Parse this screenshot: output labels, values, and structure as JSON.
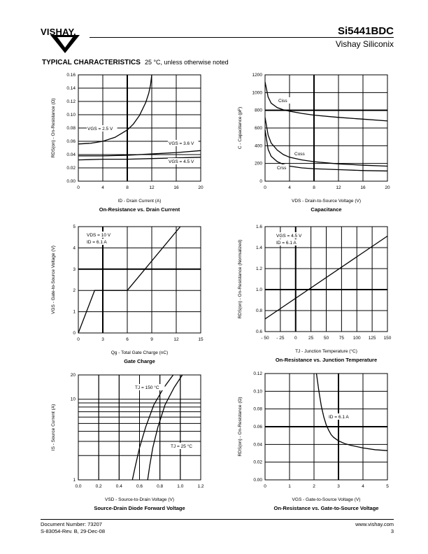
{
  "header": {
    "logo_text": "VISHAY.",
    "part_number": "Si5441BDC",
    "brand": "Vishay Siliconix"
  },
  "section": {
    "title": "TYPICAL CHARACTERISTICS",
    "subtitle": "25 °C, unless otherwise noted"
  },
  "footer": {
    "doc_number": "Document Number: 73207",
    "revision": "S-83054-Rev. B, 29-Dec-08",
    "website": "www.vishay.com",
    "page": "3"
  },
  "chart_data": [
    {
      "id": "c1",
      "type": "line",
      "title": "On-Resistance vs. Drain Current",
      "xlabel": "ID - Drain Current (A)",
      "ylabel": "RDS(on) - On-Resistance (Ω)",
      "xlim": [
        0,
        20
      ],
      "ylim": [
        0,
        0.16
      ],
      "x_ticks": [
        "0",
        "4",
        "8",
        "12",
        "16",
        "20"
      ],
      "y_ticks": [
        "0.00",
        "0.02",
        "0.04",
        "0.06",
        "0.08",
        "0.10",
        "0.12",
        "0.14",
        "0.16"
      ],
      "series": [
        {
          "name": "VGS = 2.5 V",
          "x": [
            0,
            2,
            4,
            6,
            8,
            9,
            10,
            11,
            11.5,
            11.8,
            12
          ],
          "y": [
            0.056,
            0.057,
            0.06,
            0.066,
            0.077,
            0.086,
            0.099,
            0.118,
            0.132,
            0.145,
            0.16
          ]
        },
        {
          "name": "VGS = 3.6 V",
          "x": [
            0,
            4,
            8,
            12,
            16,
            20
          ],
          "y": [
            0.038,
            0.038,
            0.039,
            0.041,
            0.043,
            0.046
          ]
        },
        {
          "name": "VGS = 4.5 V",
          "x": [
            0,
            4,
            8,
            12,
            16,
            20
          ],
          "y": [
            0.032,
            0.033,
            0.033,
            0.034,
            0.035,
            0.036
          ]
        }
      ],
      "annotations": [
        "VGS = 2.5 V",
        "VGS = 3.6 V",
        "VGS = 4.5 V"
      ]
    },
    {
      "id": "c2",
      "type": "line",
      "title": "Capacitance",
      "xlabel": "VDS - Drain-to-Source Voltage (V)",
      "ylabel": "C - Capacitance (pF)",
      "xlim": [
        0,
        20
      ],
      "ylim": [
        0,
        1200
      ],
      "x_ticks": [
        "0",
        "4",
        "8",
        "12",
        "16",
        "20"
      ],
      "y_ticks": [
        "0",
        "200",
        "400",
        "600",
        "800",
        "1000",
        "1200"
      ],
      "series": [
        {
          "name": "Ciss",
          "x": [
            0,
            0.5,
            1,
            2,
            3,
            4,
            6,
            8,
            12,
            16,
            20
          ],
          "y": [
            1120,
            950,
            880,
            830,
            805,
            790,
            765,
            745,
            720,
            700,
            680
          ]
        },
        {
          "name": "Coss",
          "x": [
            0,
            0.5,
            1,
            2,
            3,
            4,
            6,
            8,
            12,
            16,
            20
          ],
          "y": [
            720,
            520,
            430,
            350,
            300,
            270,
            240,
            220,
            195,
            180,
            170
          ]
        },
        {
          "name": "Crss",
          "x": [
            0,
            0.5,
            1,
            2,
            3,
            4,
            6,
            8,
            12,
            16,
            20
          ],
          "y": [
            580,
            360,
            280,
            220,
            190,
            170,
            150,
            140,
            130,
            120,
            115
          ]
        }
      ],
      "annotations": [
        "Ciss",
        "Coss",
        "Crss"
      ]
    },
    {
      "id": "c3",
      "type": "line",
      "title": "Gate Charge",
      "xlabel": "Qg - Total Gate Charge (nC)",
      "ylabel": "VGS - Gate-to-Source Voltage (V)",
      "xlim": [
        0,
        15
      ],
      "ylim": [
        0,
        5
      ],
      "x_ticks": [
        "0",
        "3",
        "6",
        "9",
        "12",
        "15"
      ],
      "y_ticks": [
        "0",
        "1",
        "2",
        "3",
        "4",
        "5"
      ],
      "series": [
        {
          "name": "",
          "x": [
            0,
            2,
            6,
            12.5
          ],
          "y": [
            0,
            2,
            2,
            5
          ]
        }
      ],
      "annotations": [
        "VDS = 10 V",
        "ID = 6.1 A"
      ]
    },
    {
      "id": "c4",
      "type": "line",
      "title": "On-Resistance vs. Junction Temperature",
      "xlabel": "TJ - Junction Temperature (°C)",
      "ylabel": "RDS(on) - On-Resistance (Normalized)",
      "xlim": [
        -50,
        150
      ],
      "ylim": [
        0.6,
        1.6
      ],
      "x_ticks": [
        "- 50",
        "- 25",
        "0",
        "25",
        "50",
        "75",
        "100",
        "125",
        "150"
      ],
      "y_ticks": [
        "0.6",
        "0.8",
        "1.0",
        "1.2",
        "1.4",
        "1.6"
      ],
      "series": [
        {
          "name": "",
          "x": [
            -50,
            150
          ],
          "y": [
            0.72,
            1.51
          ]
        }
      ],
      "annotations": [
        "VGS = 4.5 V",
        "ID = 6.1 A"
      ]
    },
    {
      "id": "c5",
      "type": "line",
      "title": "Source-Drain Diode Forward Voltage",
      "xlabel": "VSD - Source-to-Drain Voltage (V)",
      "ylabel": "IS - Source Current (A)",
      "xlim": [
        0,
        1.2
      ],
      "ylim": [
        1,
        20
      ],
      "log_y": true,
      "x_ticks": [
        "0.0",
        "0.2",
        "0.4",
        "0.6",
        "0.8",
        "1.0",
        "1.2"
      ],
      "y_ticks": [
        "1",
        "10",
        "20"
      ],
      "series": [
        {
          "name": "TJ = 150 °C",
          "x": [
            0.53,
            0.56,
            0.6,
            0.66,
            0.74,
            0.84,
            0.93
          ],
          "y": [
            1,
            1.5,
            2.5,
            4.5,
            8.5,
            14,
            20
          ]
        },
        {
          "name": "TJ = 25 °C",
          "x": [
            0.68,
            0.7,
            0.73,
            0.78,
            0.85,
            0.94,
            1.02
          ],
          "y": [
            1,
            1.5,
            2.5,
            4.5,
            8.5,
            14,
            20
          ]
        }
      ],
      "annotations": [
        "TJ = 150 °C",
        "TJ = 25 °C"
      ]
    },
    {
      "id": "c6",
      "type": "line",
      "title": "On-Resistance vs. Gate-to-Source Voltage",
      "xlabel": "VGS - Gate-to-Source Voltage (V)",
      "ylabel": "RDS(on) - On-Resistance (Ω)",
      "xlim": [
        0,
        5
      ],
      "ylim": [
        0,
        0.12
      ],
      "x_ticks": [
        "0",
        "1",
        "2",
        "3",
        "4",
        "5"
      ],
      "y_ticks": [
        "0.00",
        "0.02",
        "0.04",
        "0.06",
        "0.08",
        "0.10",
        "0.12"
      ],
      "series": [
        {
          "name": "",
          "x": [
            2.1,
            2.2,
            2.3,
            2.4,
            2.5,
            2.6,
            2.7,
            2.8,
            3.0,
            3.25,
            3.5,
            4.0,
            4.5,
            5.0
          ],
          "y": [
            0.12,
            0.1,
            0.083,
            0.071,
            0.062,
            0.056,
            0.051,
            0.048,
            0.044,
            0.041,
            0.039,
            0.036,
            0.034,
            0.033
          ]
        }
      ],
      "annotations": [
        "ID = 6.1 A"
      ]
    }
  ]
}
